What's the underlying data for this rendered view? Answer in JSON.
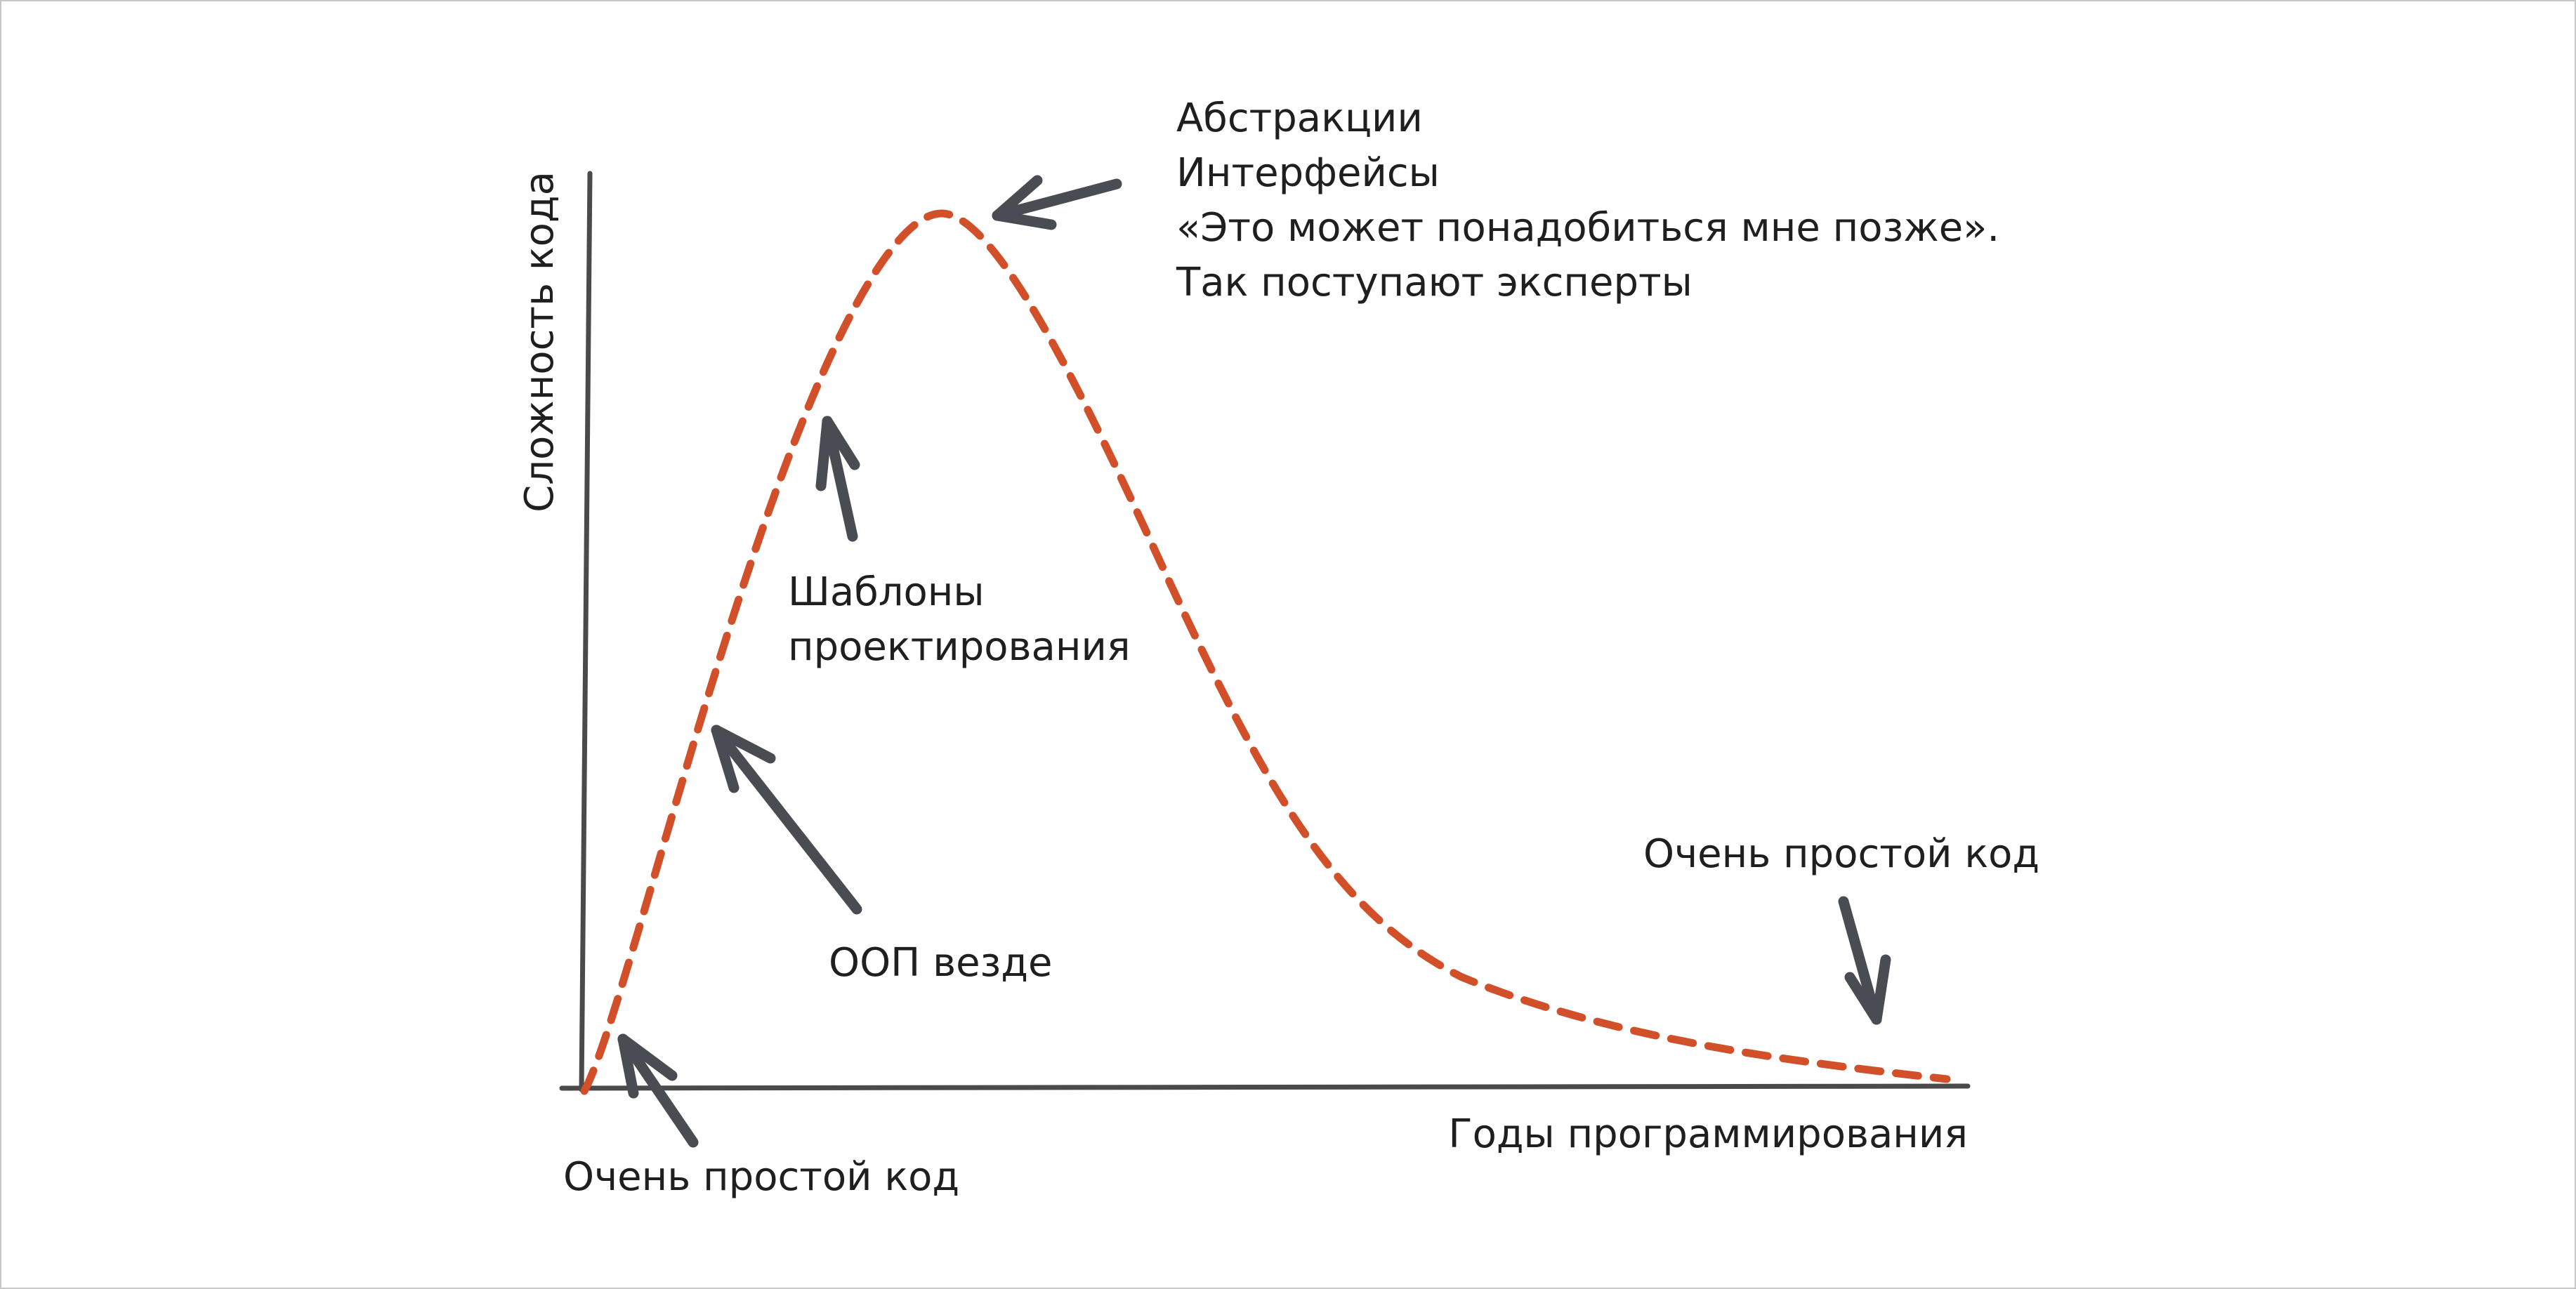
{
  "colors": {
    "axis": "#4a4a4a",
    "curve": "#d1502a",
    "arrow": "#494c52",
    "text": "#1f1f1f",
    "frame": "#c8c8c8"
  },
  "curve_style": "dashed",
  "axes": {
    "y_label": "Сложность кода",
    "x_label": "Годы программирования"
  },
  "annotations": {
    "start": "Очень простой код",
    "oop": "ООП везде",
    "patterns": {
      "line1": "Шаблоны",
      "line2": "проектирования"
    },
    "peak": {
      "line1": "Абстракции",
      "line2": "Интерфейсы",
      "line3": "«Это может понадобиться мне позже».",
      "line4": "Так поступают эксперты"
    },
    "end": "Очень простой код"
  }
}
